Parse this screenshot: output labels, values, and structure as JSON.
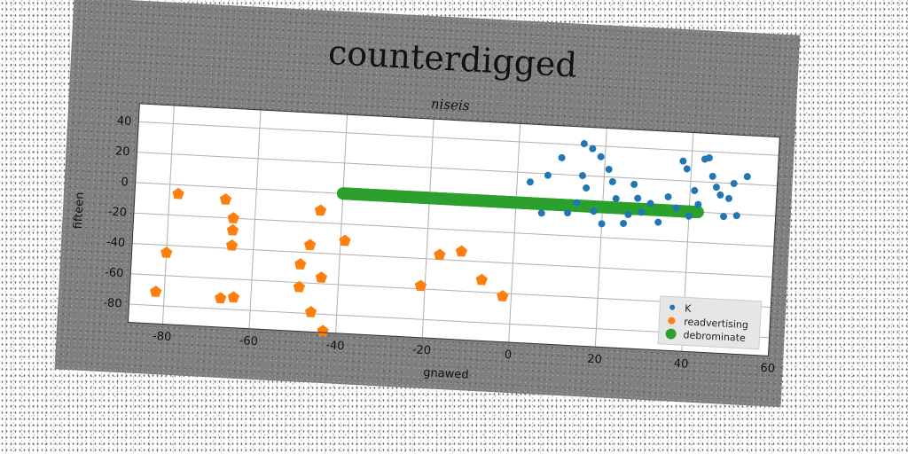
{
  "chart_data": {
    "type": "scatter",
    "title": "counterdigged",
    "subtitle": "niseis",
    "xlabel": "gnawed",
    "ylabel": "fifteen",
    "xlim": [
      -88,
      60
    ],
    "ylim": [
      -92,
      52
    ],
    "xticks": [
      -80,
      -60,
      -40,
      -20,
      0,
      20,
      40,
      60
    ],
    "yticks": [
      -80,
      -60,
      -40,
      -20,
      0,
      20,
      40
    ],
    "grid": true,
    "legend_position": "lower-right",
    "series": [
      {
        "name": "K",
        "color": "#1f77b4",
        "marker": "circle",
        "points": [
          [
            3,
            14
          ],
          [
            6,
            -6
          ],
          [
            7,
            19
          ],
          [
            10,
            31
          ],
          [
            12,
            -5
          ],
          [
            14,
            2
          ],
          [
            15,
            41
          ],
          [
            15,
            20
          ],
          [
            16,
            12
          ],
          [
            17,
            38
          ],
          [
            18,
            -3
          ],
          [
            19,
            33
          ],
          [
            20,
            -11
          ],
          [
            21,
            25
          ],
          [
            22,
            17
          ],
          [
            23,
            6
          ],
          [
            25,
            -10
          ],
          [
            26,
            -4
          ],
          [
            27,
            16
          ],
          [
            28,
            7
          ],
          [
            29,
            -2
          ],
          [
            31,
            4
          ],
          [
            33,
            -8
          ],
          [
            35,
            9
          ],
          [
            37,
            2
          ],
          [
            38,
            33
          ],
          [
            39,
            28
          ],
          [
            40,
            -3
          ],
          [
            41,
            14
          ],
          [
            42,
            5
          ],
          [
            43,
            35
          ],
          [
            44,
            36
          ],
          [
            45,
            24
          ],
          [
            46,
            17
          ],
          [
            47,
            12
          ],
          [
            48,
            -2
          ],
          [
            49,
            10
          ],
          [
            50,
            20
          ],
          [
            51,
            -1
          ],
          [
            53,
            25
          ]
        ]
      },
      {
        "name": "readvertising",
        "color": "#ff7f0e",
        "marker": "pentagon",
        "points": [
          [
            -82,
            -71
          ],
          [
            -80,
            -45
          ],
          [
            -78,
            -6
          ],
          [
            -67,
            -8
          ],
          [
            -67,
            -73
          ],
          [
            -65,
            -20
          ],
          [
            -65,
            -28
          ],
          [
            -65,
            -38
          ],
          [
            -64,
            -72
          ],
          [
            -49,
            -63
          ],
          [
            -49,
            -48
          ],
          [
            -47,
            -35
          ],
          [
            -46,
            -79
          ],
          [
            -45,
            -12
          ],
          [
            -44,
            -56
          ],
          [
            -43,
            -91
          ],
          [
            -39,
            -31
          ],
          [
            -21,
            -58
          ],
          [
            -17,
            -37
          ],
          [
            -12,
            -34
          ],
          [
            -7,
            -52
          ],
          [
            -2,
            -62
          ]
        ]
      },
      {
        "name": "debrominate",
        "color": "#2ca02c",
        "marker": "circle",
        "x_range": [
          -40,
          42
        ],
        "y_value": 0,
        "count": 300
      }
    ]
  }
}
